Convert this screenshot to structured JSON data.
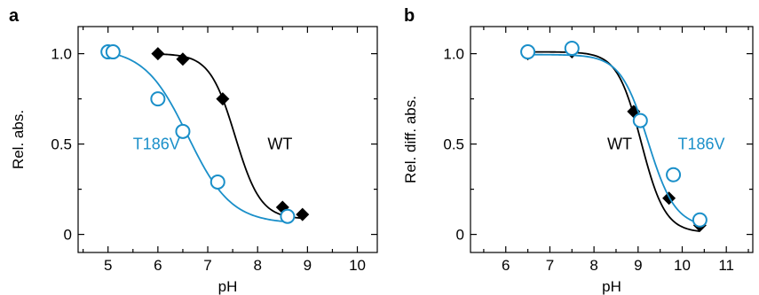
{
  "chart_data": [
    {
      "type": "scatter",
      "panel_letter": "a",
      "xlabel": "pH",
      "ylabel": "Rel. abs.",
      "xlim": [
        4.4,
        10.4
      ],
      "ylim": [
        -0.1,
        1.15
      ],
      "xticks": [
        5,
        6,
        7,
        8,
        9,
        10
      ],
      "yticks": [
        0,
        0.5,
        1.0
      ],
      "ytick_labels": [
        "0",
        "0.5",
        "1.0"
      ],
      "series": [
        {
          "name": "WT",
          "color": "#000000",
          "marker": "diamond",
          "x": [
            6.0,
            6.5,
            7.3,
            8.5,
            8.9
          ],
          "y": [
            1.0,
            0.97,
            0.75,
            0.15,
            0.11
          ],
          "fit": {
            "top": 1.0,
            "bottom": 0.085,
            "pKa": 7.55,
            "n": 1.7
          },
          "label_at": [
            8.2,
            0.5
          ]
        },
        {
          "name": "T186V",
          "color": "#1a8fc9",
          "marker": "circle",
          "x": [
            5.0,
            5.1,
            6.0,
            6.5,
            7.2,
            8.6
          ],
          "y": [
            1.01,
            1.01,
            0.75,
            0.57,
            0.29,
            0.1
          ],
          "fit": {
            "top": 1.03,
            "bottom": 0.06,
            "pKa": 6.6,
            "n": 1.0
          },
          "label_at": [
            5.5,
            0.5
          ]
        }
      ]
    },
    {
      "type": "scatter",
      "panel_letter": "b",
      "xlabel": "pH",
      "ylabel": "Rel. diff. abs.",
      "xlim": [
        5.2,
        11.6
      ],
      "ylim": [
        -0.1,
        1.15
      ],
      "xticks": [
        6,
        7,
        8,
        9,
        10,
        11
      ],
      "yticks": [
        0,
        0.5,
        1.0
      ],
      "ytick_labels": [
        "0",
        "0.5",
        "1.0"
      ],
      "series": [
        {
          "name": "WT",
          "color": "#000000",
          "marker": "diamond",
          "x": [
            6.5,
            7.5,
            8.9,
            9.7,
            10.4
          ],
          "y": [
            1.0,
            1.01,
            0.68,
            0.2,
            0.05
          ],
          "fit": {
            "top": 1.01,
            "bottom": 0.01,
            "pKa": 9.07,
            "n": 1.6
          },
          "label_at": [
            8.3,
            0.5
          ]
        },
        {
          "name": "T186V",
          "color": "#1a8fc9",
          "marker": "circle",
          "x": [
            6.5,
            7.5,
            9.05,
            9.8,
            10.4
          ],
          "y": [
            1.01,
            1.03,
            0.63,
            0.33,
            0.08
          ],
          "fit": {
            "top": 0.995,
            "bottom": 0.04,
            "pKa": 9.22,
            "n": 1.4
          },
          "label_at": [
            9.9,
            0.5
          ]
        }
      ]
    }
  ]
}
